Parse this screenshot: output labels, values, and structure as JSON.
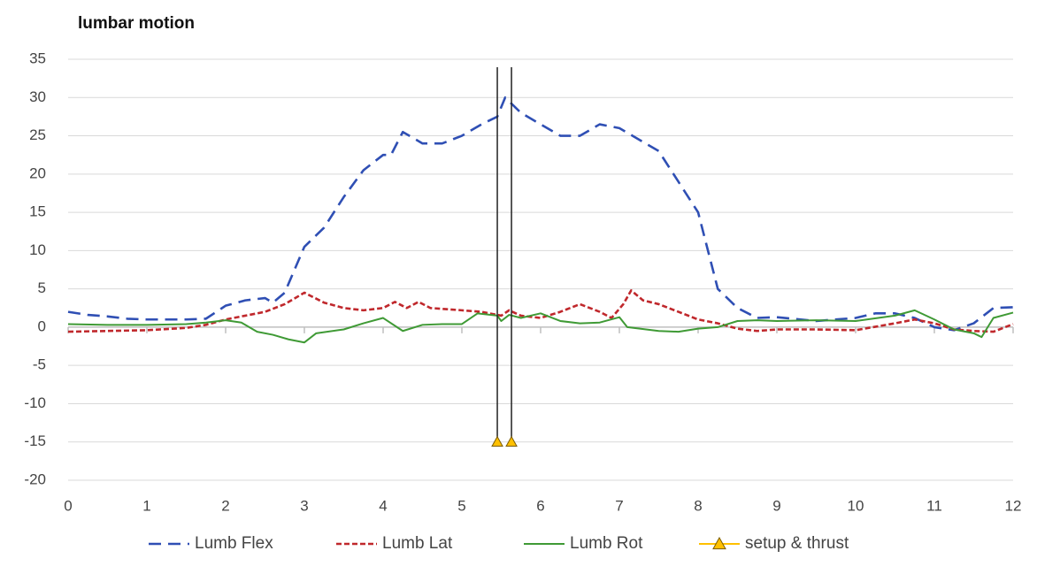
{
  "chart_data": {
    "type": "line",
    "title": "lumbar motion",
    "xlim": [
      0,
      12
    ],
    "xticks": [
      0,
      1,
      2,
      3,
      4,
      5,
      6,
      7,
      8,
      9,
      10,
      11,
      12
    ],
    "ylim": [
      -20,
      35
    ],
    "yticks": [
      -20,
      -15,
      -10,
      -5,
      0,
      5,
      10,
      15,
      20,
      25,
      30,
      35
    ],
    "grid": true,
    "legend": "bottom",
    "series": [
      {
        "name": "Lumb Flex",
        "color": "#2f4fb4",
        "dash": "dashed",
        "x": [
          0,
          0.25,
          0.5,
          0.75,
          1,
          1.25,
          1.5,
          1.75,
          2,
          2.25,
          2.5,
          2.6,
          2.75,
          3,
          3.25,
          3.5,
          3.75,
          4,
          4.1,
          4.25,
          4.5,
          4.75,
          5,
          5.25,
          5.45,
          5.55,
          5.75,
          6,
          6.25,
          6.5,
          6.75,
          7,
          7.25,
          7.5,
          7.75,
          8,
          8.25,
          8.5,
          8.75,
          9,
          9.5,
          10,
          10.25,
          10.5,
          10.75,
          11,
          11.25,
          11.5,
          11.75,
          12
        ],
        "values": [
          2,
          1.6,
          1.4,
          1.1,
          1,
          1,
          1,
          1.1,
          2.8,
          3.5,
          3.8,
          3.2,
          4.5,
          10.5,
          13,
          17,
          20.5,
          22.5,
          22.5,
          25.5,
          24,
          24,
          25,
          26.5,
          27.5,
          30,
          28,
          26.5,
          25,
          25,
          26.5,
          26,
          24.5,
          23,
          19,
          15,
          5,
          2.5,
          1.2,
          1.3,
          0.8,
          1.2,
          1.8,
          1.8,
          1.2,
          0,
          -0.4,
          0.5,
          2.5,
          2.6
        ]
      },
      {
        "name": "Lumb Lat",
        "color": "#c0282c",
        "dash": "dotted",
        "x": [
          0,
          0.5,
          1,
          1.5,
          1.75,
          2,
          2.25,
          2.5,
          2.75,
          3,
          3.25,
          3.5,
          3.75,
          4,
          4.15,
          4.3,
          4.45,
          4.6,
          5,
          5.25,
          5.5,
          5.6,
          5.75,
          6,
          6.25,
          6.5,
          6.75,
          6.9,
          7.05,
          7.15,
          7.3,
          7.5,
          7.75,
          8,
          8.25,
          8.5,
          8.75,
          9,
          9.5,
          10,
          10.5,
          10.75,
          11,
          11.25,
          11.5,
          11.75,
          12
        ],
        "values": [
          -0.6,
          -0.5,
          -0.4,
          -0.1,
          0.3,
          1,
          1.5,
          2,
          3,
          4.5,
          3.2,
          2.5,
          2.2,
          2.5,
          3.3,
          2.5,
          3.3,
          2.5,
          2.2,
          2,
          1.5,
          2.2,
          1.5,
          1.2,
          2,
          3,
          2,
          1.2,
          3,
          4.8,
          3.5,
          3,
          2,
          1,
          0.5,
          -0.2,
          -0.5,
          -0.3,
          -0.3,
          -0.4,
          0.5,
          1,
          0.5,
          -0.3,
          -0.5,
          -0.6,
          0.4
        ]
      },
      {
        "name": "Lumb Rot",
        "color": "#3f9a35",
        "dash": "solid",
        "x": [
          0,
          0.5,
          1,
          1.5,
          1.75,
          2,
          2.2,
          2.4,
          2.6,
          2.8,
          3,
          3.15,
          3.5,
          3.75,
          4,
          4.25,
          4.5,
          4.75,
          5,
          5.2,
          5.45,
          5.5,
          5.6,
          5.75,
          6,
          6.25,
          6.5,
          6.75,
          7,
          7.1,
          7.5,
          7.75,
          8,
          8.25,
          8.5,
          8.75,
          9,
          9.5,
          10,
          10.5,
          10.75,
          11,
          11.25,
          11.5,
          11.6,
          11.75,
          12
        ],
        "values": [
          0.4,
          0.3,
          0.3,
          0.4,
          0.6,
          0.9,
          0.6,
          -0.6,
          -1,
          -1.6,
          -2,
          -0.8,
          -0.3,
          0.5,
          1.2,
          -0.5,
          0.3,
          0.4,
          0.4,
          1.8,
          1.5,
          0.8,
          1.6,
          1.2,
          1.8,
          0.8,
          0.5,
          0.6,
          1.3,
          0,
          -0.5,
          -0.6,
          -0.2,
          0,
          0.8,
          0.9,
          0.8,
          0.9,
          0.8,
          1.5,
          2.2,
          1,
          -0.3,
          -0.8,
          -1.3,
          1.2,
          1.9
        ]
      },
      {
        "name": "setup & thrust",
        "color": "#ffc000",
        "marker": "triangle",
        "x": [
          5.45,
          5.63
        ],
        "values": [
          -15,
          -15
        ]
      }
    ]
  }
}
